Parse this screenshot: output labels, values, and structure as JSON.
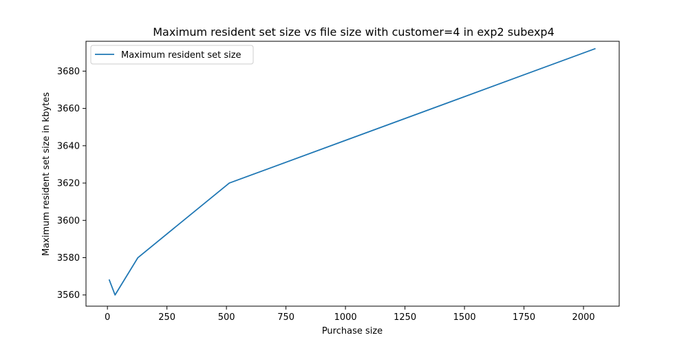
{
  "chart_data": {
    "type": "line",
    "title": "Maximum resident set size vs file size with customer=4 in exp2 subexp4",
    "xlabel": "Purchase size",
    "ylabel": "Maximum resident set size in kbytes",
    "xlim": [
      -90,
      2150
    ],
    "ylim": [
      3554,
      3696
    ],
    "x_ticks": [
      0,
      250,
      500,
      750,
      1000,
      1250,
      1500,
      1750,
      2000
    ],
    "y_ticks": [
      3560,
      3580,
      3600,
      3620,
      3640,
      3660,
      3680
    ],
    "grid": false,
    "legend_position": "top-left",
    "series": [
      {
        "name": "Maximum resident set size",
        "color": "#1f77b4",
        "x": [
          8,
          32,
          128,
          512,
          2048
        ],
        "y": [
          3568,
          3560,
          3580,
          3620,
          3692
        ]
      }
    ]
  }
}
